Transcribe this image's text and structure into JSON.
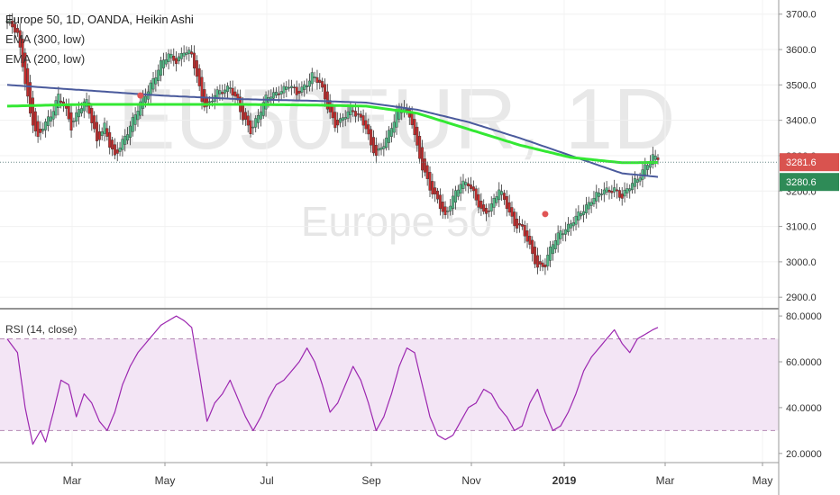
{
  "header": {
    "title": "Europe 50, 1D, OANDA, Heikin Ashi",
    "ema300": "EMA (300, low)",
    "ema200": "EMA (200, low)"
  },
  "watermark": {
    "symbol": "EU50EUR, 1D",
    "name": "Europe 50"
  },
  "colors": {
    "up": "#53b987",
    "down": "#c12d2d",
    "ema300": "#4a5a9c",
    "ema200": "#33e833",
    "rsi": "#9c27b0",
    "rsi_band": "#f3e5f5",
    "last_price_bg": "#d9534f",
    "ema_price_bg": "#2e8b57"
  },
  "chart_data": [
    {
      "type": "candlestick",
      "title": "Europe 50, 1D, OANDA, Heikin Ashi",
      "ylim": [
        2870,
        3740
      ],
      "x_ticks": [
        "Mar",
        "May",
        "Jul",
        "Sep",
        "Nov",
        "2019",
        "Mar",
        "May"
      ],
      "y_ticks": [
        "2900.0",
        "3000.0",
        "3100.0",
        "3200.0",
        "3300.0",
        "3400.0",
        "3500.0",
        "3600.0",
        "3700.0"
      ],
      "price_labels": {
        "last": "3281.6",
        "ema": "3280.6"
      },
      "close_path": [
        [
          0,
          3680
        ],
        [
          4,
          3640
        ],
        [
          6,
          3560
        ],
        [
          9,
          3420
        ],
        [
          12,
          3340
        ],
        [
          14,
          3380
        ],
        [
          17,
          3420
        ],
        [
          20,
          3470
        ],
        [
          23,
          3420
        ],
        [
          25,
          3380
        ],
        [
          28,
          3440
        ],
        [
          31,
          3450
        ],
        [
          33,
          3390
        ],
        [
          35,
          3340
        ],
        [
          38,
          3390
        ],
        [
          40,
          3330
        ],
        [
          42,
          3290
        ],
        [
          45,
          3340
        ],
        [
          48,
          3390
        ],
        [
          51,
          3430
        ],
        [
          54,
          3470
        ],
        [
          57,
          3520
        ],
        [
          60,
          3560
        ],
        [
          63,
          3580
        ],
        [
          66,
          3570
        ],
        [
          69,
          3600
        ],
        [
          72,
          3580
        ],
        [
          74,
          3520
        ],
        [
          76,
          3460
        ],
        [
          78,
          3440
        ],
        [
          81,
          3470
        ],
        [
          84,
          3480
        ],
        [
          87,
          3500
        ],
        [
          90,
          3450
        ],
        [
          92,
          3400
        ],
        [
          95,
          3370
        ],
        [
          98,
          3420
        ],
        [
          101,
          3460
        ],
        [
          104,
          3470
        ],
        [
          107,
          3490
        ],
        [
          110,
          3500
        ],
        [
          113,
          3470
        ],
        [
          116,
          3500
        ],
        [
          119,
          3530
        ],
        [
          122,
          3500
        ],
        [
          125,
          3440
        ],
        [
          128,
          3390
        ],
        [
          131,
          3400
        ],
        [
          134,
          3430
        ],
        [
          137,
          3420
        ],
        [
          140,
          3380
        ],
        [
          142,
          3320
        ],
        [
          144,
          3300
        ],
        [
          147,
          3340
        ],
        [
          150,
          3380
        ],
        [
          153,
          3430
        ],
        [
          155,
          3440
        ],
        [
          158,
          3400
        ],
        [
          160,
          3320
        ],
        [
          162,
          3260
        ],
        [
          165,
          3210
        ],
        [
          168,
          3180
        ],
        [
          171,
          3120
        ],
        [
          174,
          3180
        ],
        [
          177,
          3230
        ],
        [
          180,
          3220
        ],
        [
          183,
          3170
        ],
        [
          186,
          3140
        ],
        [
          189,
          3160
        ],
        [
          192,
          3200
        ],
        [
          195,
          3160
        ],
        [
          198,
          3110
        ],
        [
          201,
          3090
        ],
        [
          204,
          3040
        ],
        [
          207,
          2990
        ],
        [
          210,
          2990
        ],
        [
          213,
          3050
        ],
        [
          216,
          3090
        ],
        [
          219,
          3100
        ],
        [
          222,
          3120
        ],
        [
          225,
          3150
        ],
        [
          228,
          3180
        ],
        [
          231,
          3190
        ],
        [
          234,
          3200
        ],
        [
          237,
          3210
        ],
        [
          240,
          3180
        ],
        [
          243,
          3210
        ],
        [
          246,
          3240
        ],
        [
          249,
          3270
        ],
        [
          252,
          3290
        ],
        [
          254,
          3295
        ]
      ],
      "ema300": [
        [
          0,
          3500
        ],
        [
          30,
          3485
        ],
        [
          60,
          3470
        ],
        [
          90,
          3460
        ],
        [
          120,
          3455
        ],
        [
          140,
          3450
        ],
        [
          160,
          3430
        ],
        [
          180,
          3395
        ],
        [
          200,
          3350
        ],
        [
          220,
          3300
        ],
        [
          240,
          3250
        ],
        [
          254,
          3240
        ]
      ],
      "ema200": [
        [
          0,
          3440
        ],
        [
          30,
          3445
        ],
        [
          60,
          3445
        ],
        [
          90,
          3445
        ],
        [
          120,
          3443
        ],
        [
          140,
          3440
        ],
        [
          160,
          3420
        ],
        [
          180,
          3375
        ],
        [
          200,
          3330
        ],
        [
          220,
          3295
        ],
        [
          240,
          3280
        ],
        [
          254,
          3281
        ]
      ],
      "markers": [
        [
          52,
          3470
        ],
        [
          210,
          3135
        ]
      ]
    },
    {
      "type": "line",
      "title": "RSI (14, close)",
      "ylim": [
        16,
        82
      ],
      "y_ticks": [
        "20.0000",
        "40.0000",
        "60.0000",
        "80.0000"
      ],
      "band": [
        30,
        70
      ],
      "rsi_path": [
        [
          0,
          70
        ],
        [
          4,
          64
        ],
        [
          7,
          40
        ],
        [
          10,
          24
        ],
        [
          13,
          30
        ],
        [
          15,
          25
        ],
        [
          18,
          38
        ],
        [
          21,
          52
        ],
        [
          24,
          50
        ],
        [
          27,
          36
        ],
        [
          30,
          46
        ],
        [
          33,
          42
        ],
        [
          36,
          34
        ],
        [
          39,
          30
        ],
        [
          42,
          38
        ],
        [
          45,
          50
        ],
        [
          48,
          58
        ],
        [
          51,
          64
        ],
        [
          54,
          68
        ],
        [
          57,
          72
        ],
        [
          60,
          76
        ],
        [
          63,
          78
        ],
        [
          66,
          80
        ],
        [
          69,
          78
        ],
        [
          72,
          75
        ],
        [
          75,
          55
        ],
        [
          78,
          34
        ],
        [
          81,
          42
        ],
        [
          84,
          46
        ],
        [
          87,
          52
        ],
        [
          90,
          44
        ],
        [
          93,
          36
        ],
        [
          96,
          30
        ],
        [
          99,
          36
        ],
        [
          102,
          44
        ],
        [
          105,
          50
        ],
        [
          108,
          52
        ],
        [
          111,
          56
        ],
        [
          114,
          60
        ],
        [
          117,
          66
        ],
        [
          120,
          60
        ],
        [
          123,
          50
        ],
        [
          126,
          38
        ],
        [
          129,
          42
        ],
        [
          132,
          50
        ],
        [
          135,
          58
        ],
        [
          138,
          52
        ],
        [
          141,
          42
        ],
        [
          144,
          30
        ],
        [
          147,
          36
        ],
        [
          150,
          46
        ],
        [
          153,
          58
        ],
        [
          156,
          66
        ],
        [
          159,
          64
        ],
        [
          162,
          50
        ],
        [
          165,
          36
        ],
        [
          168,
          28
        ],
        [
          171,
          26
        ],
        [
          174,
          28
        ],
        [
          177,
          34
        ],
        [
          180,
          40
        ],
        [
          183,
          42
        ],
        [
          186,
          48
        ],
        [
          189,
          46
        ],
        [
          192,
          40
        ],
        [
          195,
          36
        ],
        [
          198,
          30
        ],
        [
          201,
          32
        ],
        [
          204,
          42
        ],
        [
          207,
          48
        ],
        [
          210,
          38
        ],
        [
          213,
          30
        ],
        [
          216,
          32
        ],
        [
          219,
          38
        ],
        [
          222,
          46
        ],
        [
          225,
          56
        ],
        [
          228,
          62
        ],
        [
          231,
          66
        ],
        [
          234,
          70
        ],
        [
          237,
          74
        ],
        [
          240,
          68
        ],
        [
          243,
          64
        ],
        [
          246,
          70
        ],
        [
          249,
          72
        ],
        [
          252,
          74
        ],
        [
          254,
          75
        ]
      ]
    }
  ]
}
